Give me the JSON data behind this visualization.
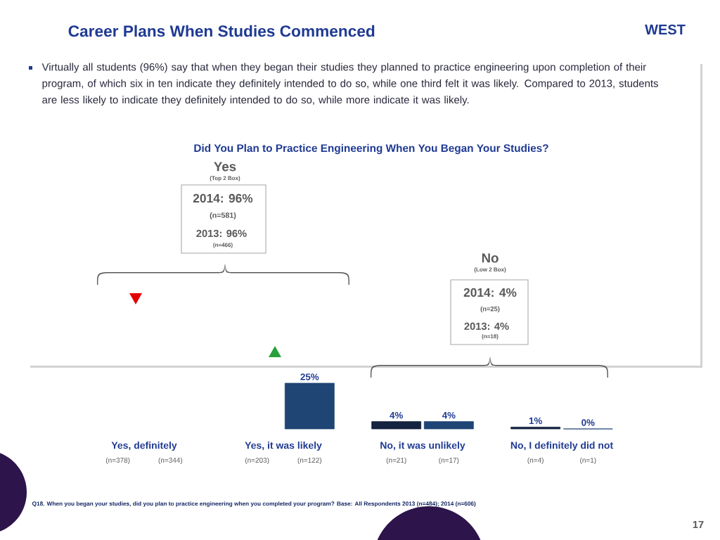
{
  "chart_data": {
    "type": "bar",
    "title": "Career Plans When Studies Commenced",
    "subtitle": "Did You Plan to Practice Engineering When You Began Your Studies?",
    "categories": [
      "Yes, definitely",
      "Yes, it was likely",
      "No, it was unlikely",
      "No, I definitely did not"
    ],
    "series": [
      {
        "color": "#14233f",
        "values": [
          null,
          null,
          4,
          1
        ],
        "value_labels": [
          null,
          null,
          "4%",
          "1%"
        ]
      },
      {
        "color": "#1f4575",
        "values": [
          null,
          25,
          4,
          0
        ],
        "value_labels": [
          null,
          "25%",
          "4%",
          "0%"
        ]
      }
    ],
    "tick_labels": "x",
    "annotations": [
      "WEST",
      "Virtually all students (96%) say that when they began their studies they planned to practice engineering upon completion of their program, of which six in ten indicate they definitely intended to do so, while one third felt it was likely. Compared to 2013, students are less likely to indicate they definitely intended to do so, while more indicate it was likely.",
      "Yes",
      "(Top 2 Box)",
      "2014: 96%",
      "(n=581)",
      "2013: 96%",
      "(n=466)",
      "No",
      "(Low 2 Box)",
      "2014: 4%",
      "(n=25)",
      "2013: 4%",
      "(n=18)",
      "Q18. When you began your studies, did you plan to practice engineering when you completed your program?  Base:  All Respondents 2013 (n=484); 2014 (n=606)",
      "17",
      "(n=378)",
      "(n=344)",
      "(n=203)",
      "(n=122)",
      "(n=21)",
      "(n=17)",
      "(n=4)",
      "(n=1)"
    ]
  }
}
